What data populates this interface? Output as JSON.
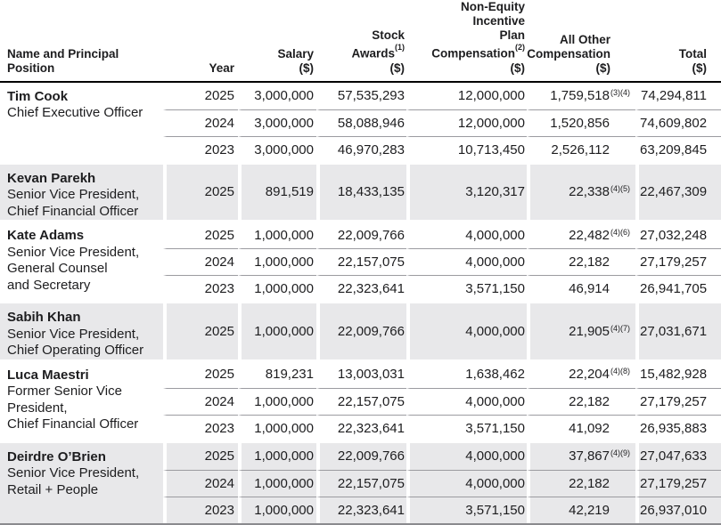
{
  "colors": {
    "shaded_row_bg": "#e8e8ea",
    "row_separator": "#9b9ba0",
    "header_rule": "#000000",
    "table_bottom_rule": "#8a8a8e",
    "text": "#1d1d1f"
  },
  "table": {
    "header": {
      "name": {
        "line1": "Name and Principal Position"
      },
      "year": {
        "line1": "Year"
      },
      "salary": {
        "line1": "Salary",
        "line2": "($)"
      },
      "stock_awards": {
        "line1": "Stock Awards",
        "sup": "(1)",
        "line2": "($)"
      },
      "non_equity": {
        "line1": "Non-Equity Incentive",
        "line2": "Plan Compensation",
        "sup": "(2)",
        "line3": "($)"
      },
      "all_other": {
        "line1": "All Other",
        "line2": "Compensation",
        "line3": "($)"
      },
      "total": {
        "line1": "Total",
        "line2": "($)"
      }
    },
    "sections": [
      {
        "shaded": false,
        "name": "Tim Cook",
        "title_lines": [
          "Chief Executive Officer"
        ],
        "rows": [
          {
            "year": "2025",
            "salary": "3,000,000",
            "stock": "57,535,293",
            "nonequity": "12,000,000",
            "allother": "1,759,518",
            "allother_sup": "(3)(4)",
            "total": "74,294,811"
          },
          {
            "year": "2024",
            "salary": "3,000,000",
            "stock": "58,088,946",
            "nonequity": "12,000,000",
            "allother": "1,520,856",
            "allother_sup": "",
            "total": "74,609,802"
          },
          {
            "year": "2023",
            "salary": "3,000,000",
            "stock": "46,970,283",
            "nonequity": "10,713,450",
            "allother": "2,526,112",
            "allother_sup": "",
            "total": "63,209,845"
          }
        ]
      },
      {
        "shaded": true,
        "name": "Kevan Parekh",
        "title_lines": [
          "Senior Vice President,",
          "Chief Financial Officer"
        ],
        "rows": [
          {
            "year": "2025",
            "salary": "891,519",
            "stock": "18,433,135",
            "nonequity": "3,120,317",
            "allother": "22,338",
            "allother_sup": "(4)(5)",
            "total": "22,467,309"
          }
        ]
      },
      {
        "shaded": false,
        "name": "Kate Adams",
        "title_lines": [
          "Senior Vice President,",
          "General Counsel",
          "and Secretary"
        ],
        "rows": [
          {
            "year": "2025",
            "salary": "1,000,000",
            "stock": "22,009,766",
            "nonequity": "4,000,000",
            "allother": "22,482",
            "allother_sup": "(4)(6)",
            "total": "27,032,248"
          },
          {
            "year": "2024",
            "salary": "1,000,000",
            "stock": "22,157,075",
            "nonequity": "4,000,000",
            "allother": "22,182",
            "allother_sup": "",
            "total": "27,179,257"
          },
          {
            "year": "2023",
            "salary": "1,000,000",
            "stock": "22,323,641",
            "nonequity": "3,571,150",
            "allother": "46,914",
            "allother_sup": "",
            "total": "26,941,705"
          }
        ]
      },
      {
        "shaded": true,
        "name": "Sabih Khan",
        "title_lines": [
          "Senior Vice President,",
          "Chief Operating Officer"
        ],
        "rows": [
          {
            "year": "2025",
            "salary": "1,000,000",
            "stock": "22,009,766",
            "nonequity": "4,000,000",
            "allother": "21,905",
            "allother_sup": "(4)(7)",
            "total": "27,031,671"
          }
        ]
      },
      {
        "shaded": false,
        "name": "Luca Maestri",
        "title_lines": [
          "Former Senior Vice President,",
          "Chief Financial Officer"
        ],
        "rows": [
          {
            "year": "2025",
            "salary": "819,231",
            "stock": "13,003,031",
            "nonequity": "1,638,462",
            "allother": "22,204",
            "allother_sup": "(4)(8)",
            "total": "15,482,928"
          },
          {
            "year": "2024",
            "salary": "1,000,000",
            "stock": "22,157,075",
            "nonequity": "4,000,000",
            "allother": "22,182",
            "allother_sup": "",
            "total": "27,179,257"
          },
          {
            "year": "2023",
            "salary": "1,000,000",
            "stock": "22,323,641",
            "nonequity": "3,571,150",
            "allother": "41,092",
            "allother_sup": "",
            "total": "26,935,883"
          }
        ]
      },
      {
        "shaded": true,
        "name": "Deirdre O’Brien",
        "title_lines": [
          "Senior Vice President,",
          "Retail + People"
        ],
        "rows": [
          {
            "year": "2025",
            "salary": "1,000,000",
            "stock": "22,009,766",
            "nonequity": "4,000,000",
            "allother": "37,867",
            "allother_sup": "(4)(9)",
            "total": "27,047,633"
          },
          {
            "year": "2024",
            "salary": "1,000,000",
            "stock": "22,157,075",
            "nonequity": "4,000,000",
            "allother": "22,182",
            "allother_sup": "",
            "total": "27,179,257"
          },
          {
            "year": "2023",
            "salary": "1,000,000",
            "stock": "22,323,641",
            "nonequity": "3,571,150",
            "allother": "42,219",
            "allother_sup": "",
            "total": "26,937,010"
          }
        ]
      }
    ]
  }
}
